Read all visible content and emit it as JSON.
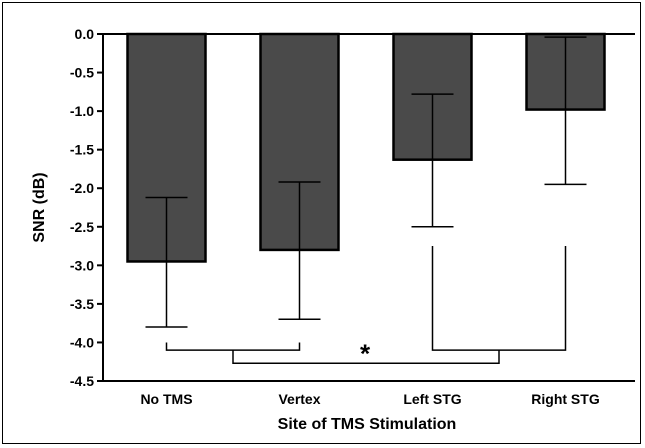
{
  "chart_data": {
    "type": "bar",
    "title": "",
    "xlabel": "Site of TMS Stimulation",
    "ylabel": "SNR (dB)",
    "ylim": [
      -4.5,
      0.0
    ],
    "yticks": [
      0.0,
      -0.5,
      -1.0,
      -1.5,
      -2.0,
      -2.5,
      -3.0,
      -3.5,
      -4.0,
      -4.5
    ],
    "ytick_labels": [
      "0.0",
      "-0.5",
      "-1.0",
      "-1.5",
      "-2.0",
      "-2.5",
      "-3.0",
      "-3.5",
      "-4.0",
      "-4.5"
    ],
    "categories": [
      "No TMS",
      "Vertex",
      "Left STG",
      "Right STG"
    ],
    "values": [
      -2.95,
      -2.8,
      -1.63,
      -0.98
    ],
    "error_bars": [
      {
        "low": -3.8,
        "high": -2.12
      },
      {
        "low": -3.7,
        "high": -1.92
      },
      {
        "low": -2.5,
        "high": -0.78
      },
      {
        "low": -1.95,
        "high": -0.04
      }
    ],
    "bar_color": "#4a4a4a",
    "grid": false,
    "legend": "none",
    "significance": {
      "marker": "*",
      "group_a": [
        "No TMS",
        "Vertex"
      ],
      "group_b": [
        "Left STG",
        "Right STG"
      ]
    }
  }
}
